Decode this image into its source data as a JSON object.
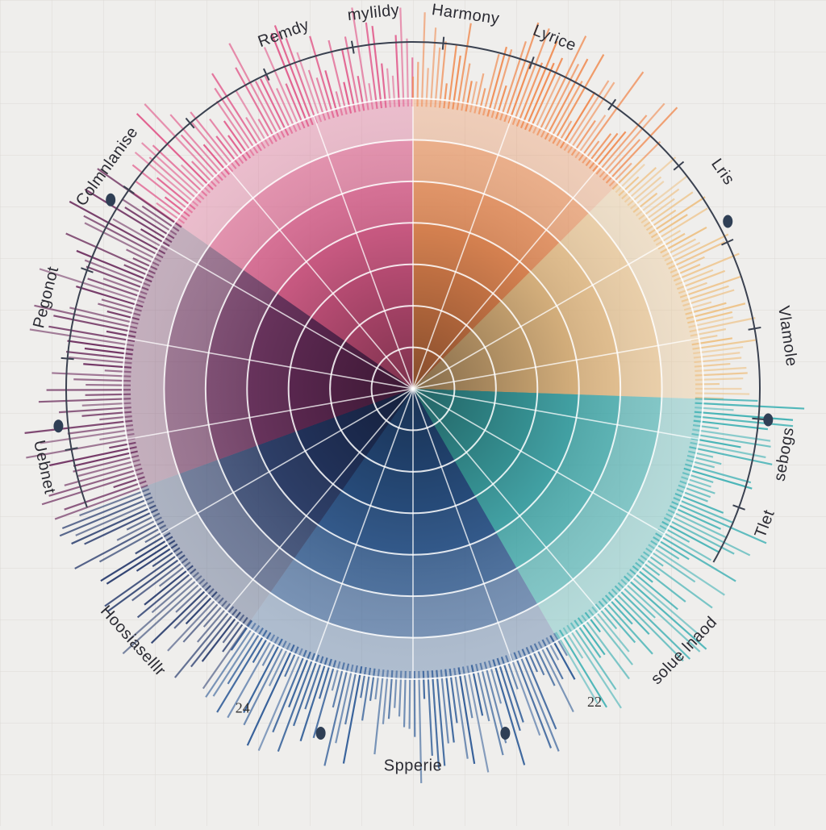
{
  "chart_data": {
    "type": "radial-bar",
    "segment_labels": [
      {
        "text": "Remdy",
        "angle": -20
      },
      {
        "text": "mylildy",
        "angle": -6
      },
      {
        "text": "Harmony",
        "angle": 8
      },
      {
        "text": "Lyrice",
        "angle": 22
      },
      {
        "text": "Lris",
        "angle": 55
      },
      {
        "text": "Vlamole",
        "angle": 82
      },
      {
        "text": "sebogs",
        "angle": 100
      },
      {
        "text": "Tlet",
        "angle": 111
      },
      {
        "text": "solue lnaod",
        "angle": 134
      },
      {
        "text": "Spperie",
        "angle": 180
      },
      {
        "text": "Hoosiaselllr",
        "angle": 228
      },
      {
        "text": "Uebnet",
        "angle": 258
      },
      {
        "text": "Pegonot",
        "angle": 284
      },
      {
        "text": "Colmnlanise",
        "angle": 306
      }
    ],
    "tick_numbers": [
      {
        "text": "24",
        "angle": 208
      },
      {
        "text": "22",
        "angle": 150
      }
    ],
    "sectors": [
      {
        "name": "pink",
        "start": -55,
        "end": 0,
        "color": "#e15a8b"
      },
      {
        "name": "orange",
        "start": 0,
        "end": 45,
        "color": "#f08a50"
      },
      {
        "name": "peach",
        "start": 45,
        "end": 92,
        "color": "#eec184"
      },
      {
        "name": "teal",
        "start": 92,
        "end": 150,
        "color": "#3fb1b4"
      },
      {
        "name": "blue",
        "start": 150,
        "end": 215,
        "color": "#2d5a96"
      },
      {
        "name": "navy",
        "start": 215,
        "end": 250,
        "color": "#263a6c"
      },
      {
        "name": "purple",
        "start": 250,
        "end": 305,
        "color": "#6c2d5e"
      }
    ],
    "rings": 7,
    "grid": true
  }
}
